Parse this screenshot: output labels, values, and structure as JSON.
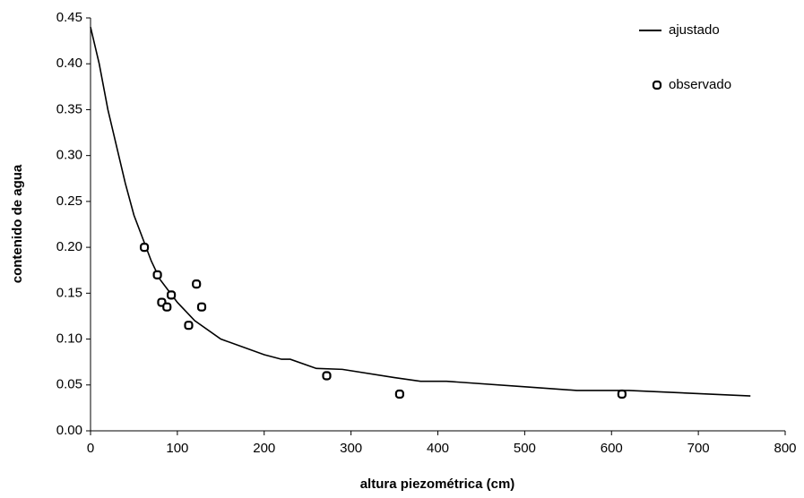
{
  "chart_data": {
    "type": "scatter-line",
    "x_label": "altura piezométrica (cm)",
    "y_label": "contenido de agua",
    "xlim": [
      0,
      800
    ],
    "xticks": [
      0,
      100,
      200,
      300,
      400,
      500,
      600,
      700,
      800
    ],
    "ylim": [
      0,
      0.45
    ],
    "yticks": [
      {
        "value": 0,
        "label": "0.00"
      },
      0.05,
      {
        "value": 0.1,
        "label": "0.10"
      },
      0.15,
      {
        "value": 0.2,
        "label": "0.20"
      },
      0.25,
      {
        "value": 0.3,
        "label": "0.30"
      },
      0.35,
      {
        "value": 0.4,
        "label": "0.40"
      },
      0.45
    ],
    "legend": "top-right",
    "series": [
      {
        "name": "ajustado",
        "kind": "line",
        "color": "#000000",
        "x": [
          0,
          10,
          20,
          30,
          40,
          50,
          60,
          70,
          80,
          100,
          120,
          150,
          200,
          220,
          230,
          260,
          290,
          350,
          380,
          410,
          500,
          560,
          620,
          760
        ],
        "values": [
          0.44,
          0.4,
          0.35,
          0.31,
          0.27,
          0.235,
          0.21,
          0.185,
          0.165,
          0.14,
          0.12,
          0.1,
          0.083,
          0.078,
          0.078,
          0.068,
          0.067,
          0.058,
          0.054,
          0.054,
          0.048,
          0.044,
          0.044,
          0.038
        ]
      },
      {
        "name": "observado",
        "kind": "marker",
        "color": "#000000",
        "x": [
          62,
          77,
          82,
          88,
          93,
          113,
          122,
          128,
          272,
          356,
          612
        ],
        "values": [
          0.2,
          0.17,
          0.14,
          0.135,
          0.148,
          0.115,
          0.16,
          0.135,
          0.06,
          0.04,
          0.04
        ]
      }
    ]
  }
}
